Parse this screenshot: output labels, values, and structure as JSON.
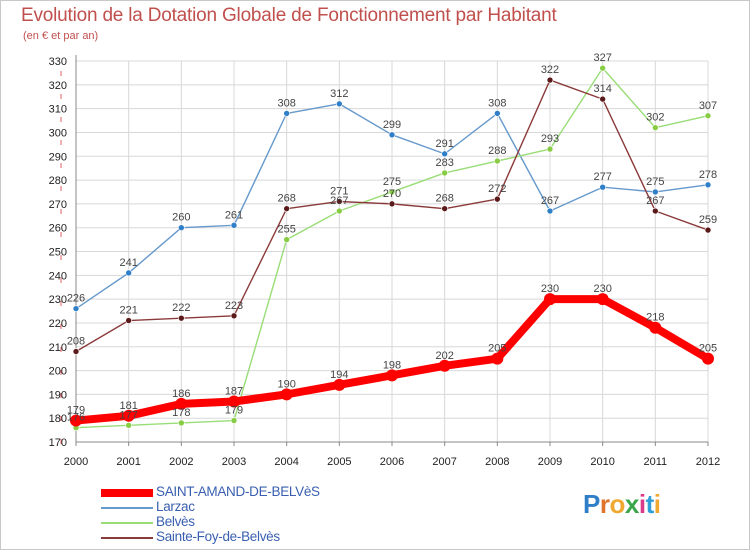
{
  "title": "Evolution de la Dotation Globale de Fonctionnement par Habitant",
  "subtitle": "(en € et par an)",
  "brand": {
    "text": "Proxiti",
    "letter_colors": [
      "#2f7fc8",
      "#e0762b",
      "#f0a830",
      "#3aa64a",
      "#d93a8a",
      "#2f9ed8",
      "#f0a830"
    ]
  },
  "chart_data": {
    "type": "line",
    "x": [
      "2000",
      "2001",
      "2002",
      "2003",
      "2004",
      "2005",
      "2006",
      "2007",
      "2008",
      "2009",
      "2010",
      "2011",
      "2012"
    ],
    "ylim": [
      170,
      330
    ],
    "yticks": [
      170,
      180,
      190,
      200,
      210,
      220,
      230,
      240,
      250,
      260,
      270,
      280,
      290,
      300,
      310,
      320,
      330
    ],
    "grid": true,
    "legend_position": "bottom-left",
    "series": [
      {
        "name": "Larzac",
        "color": "#6699cc",
        "marker_color": "#2f7fc8",
        "values": [
          226,
          241,
          260,
          261,
          308,
          312,
          299,
          291,
          308,
          267,
          277,
          275,
          278
        ]
      },
      {
        "name": "Belvès",
        "color": "#99dd77",
        "marker_color": "#88cc44",
        "values": [
          176,
          177,
          178,
          179,
          255,
          267,
          275,
          283,
          288,
          293,
          327,
          302,
          307
        ]
      },
      {
        "name": "Sainte-Foy-de-Belvès",
        "color": "#8b3a3a",
        "marker_color": "#5a1a1a",
        "values": [
          208,
          221,
          222,
          223,
          268,
          271,
          270,
          268,
          272,
          322,
          314,
          267,
          259
        ]
      },
      {
        "name": "SAINT-AMAND-DE-BELVèS",
        "color": "#ff0000",
        "marker_color": "#ff0000",
        "values": [
          179,
          181,
          186,
          187,
          190,
          194,
          198,
          202,
          205,
          230,
          230,
          218,
          205
        ]
      }
    ],
    "legend_order": [
      "SAINT-AMAND-DE-BELVèS",
      "Larzac",
      "Belvès",
      "Sainte-Foy-de-Belvès"
    ]
  }
}
